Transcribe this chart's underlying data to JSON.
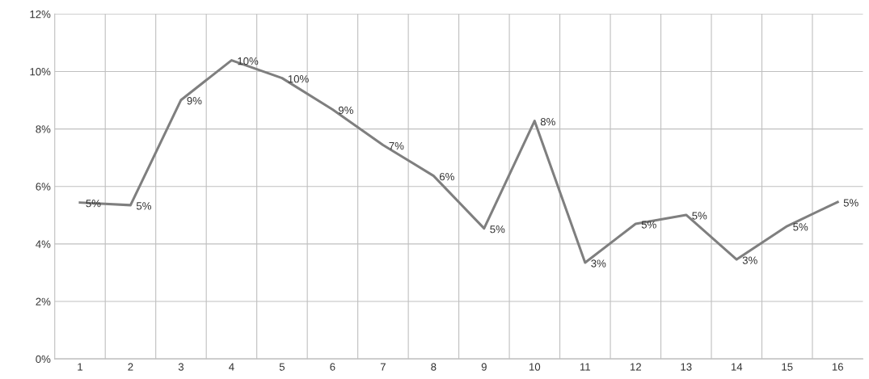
{
  "chart_data": {
    "type": "line",
    "categories": [
      "1",
      "2",
      "3",
      "4",
      "5",
      "6",
      "7",
      "8",
      "9",
      "10",
      "11",
      "12",
      "13",
      "14",
      "15",
      "16"
    ],
    "series": [
      {
        "color": "#7f7f7f",
        "values": [
          5.44,
          5.35,
          9.01,
          10.39,
          9.77,
          8.68,
          7.44,
          6.37,
          4.54,
          8.28,
          3.35,
          4.7,
          5.01,
          3.46,
          4.62,
          5.46
        ],
        "value_labels": [
          "5%",
          "5%",
          "9%",
          "10%",
          "10%",
          "9%",
          "7%",
          "6%",
          "5%",
          "8%",
          "3%",
          "5%",
          "5%",
          "3%",
          "5%",
          "5%"
        ]
      }
    ],
    "ylim": [
      0,
      12
    ],
    "yticks": [
      {
        "value": 0,
        "label": "0%"
      },
      {
        "value": 2,
        "label": "2%"
      },
      {
        "value": 4,
        "label": "4%"
      },
      {
        "value": 6,
        "label": "6%"
      },
      {
        "value": 8,
        "label": "8%"
      },
      {
        "value": 10,
        "label": "10%"
      },
      {
        "value": 12,
        "label": "12%"
      }
    ],
    "grid": true,
    "marker": "none",
    "line_style": "solid"
  }
}
